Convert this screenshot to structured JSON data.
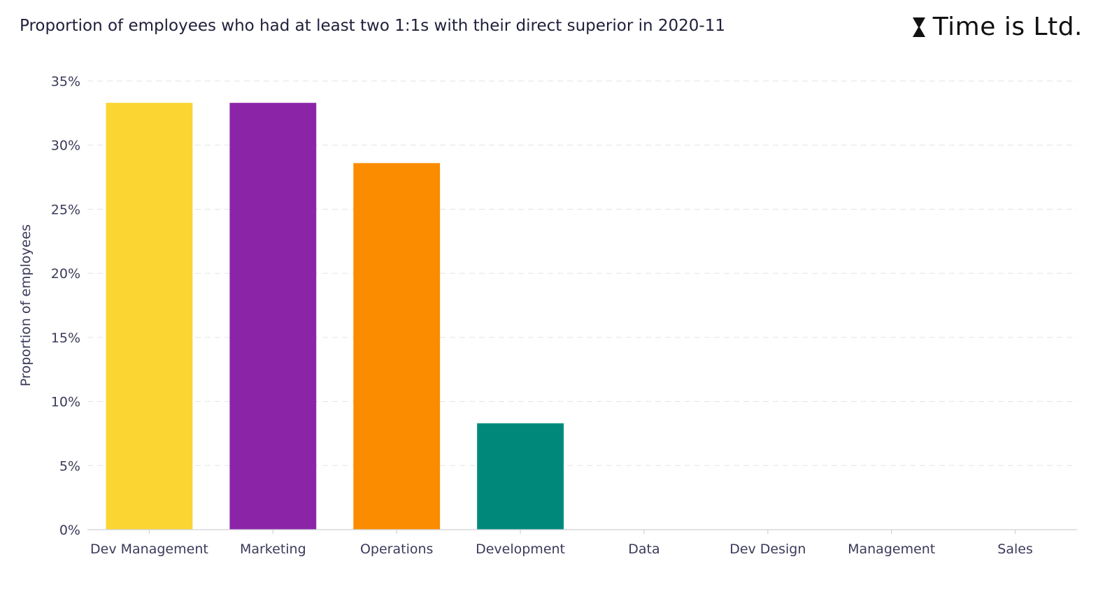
{
  "header": {
    "title": "Proportion of employees who had at least two 1:1s with their direct superior in 2020-11",
    "brand": "Time is Ltd."
  },
  "icons": {
    "brand_mark": "hourglass-icon"
  },
  "chart_data": {
    "type": "bar",
    "title": "Proportion of employees who had at least two 1:1s with their direct superior in 2020-11",
    "xlabel": "",
    "ylabel": "Proportion of employees",
    "categories": [
      "Dev Management",
      "Marketing",
      "Operations",
      "Development",
      "Data",
      "Dev Design",
      "Management",
      "Sales"
    ],
    "values": [
      33.3,
      33.3,
      28.6,
      8.3,
      0,
      0,
      0,
      0
    ],
    "colors": [
      "#FBD532",
      "#8C24A8",
      "#FB8C00",
      "#00897B",
      "#4CAF50",
      "#3F51B5",
      "#E91E63",
      "#795548"
    ],
    "ylim": [
      0,
      35
    ],
    "yticks": [
      0,
      5,
      10,
      15,
      20,
      25,
      30,
      35
    ],
    "ytick_labels": [
      "0%",
      "5%",
      "10%",
      "15%",
      "20%",
      "25%",
      "30%",
      "35%"
    ],
    "grid": true,
    "legend": "none"
  }
}
